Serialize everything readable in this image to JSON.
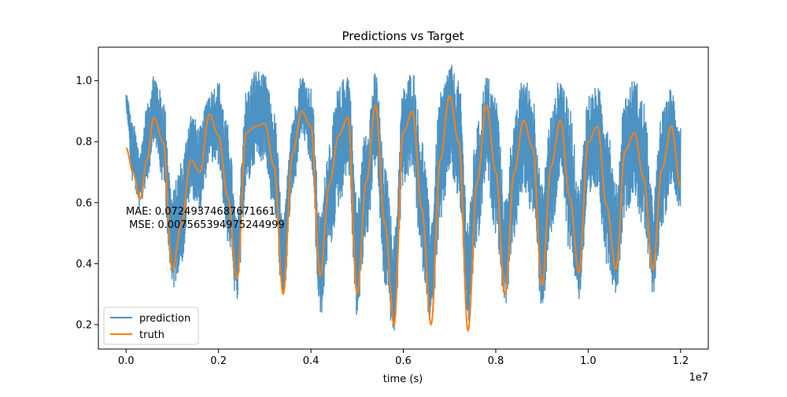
{
  "chart_data": {
    "type": "line",
    "title": "Predictions vs Target",
    "xlabel": "time (s)",
    "ylabel": "",
    "x_offset_label": "1e7",
    "xlim": [
      -0.06,
      1.26
    ],
    "ylim": [
      0.12,
      1.11
    ],
    "x_ticks": [
      0.0,
      0.2,
      0.4,
      0.6,
      0.8,
      1.0,
      1.2
    ],
    "x_tick_labels": [
      "0.0",
      "0.2",
      "0.4",
      "0.6",
      "0.8",
      "1.0",
      "1.2"
    ],
    "y_ticks": [
      0.2,
      0.4,
      0.6,
      0.8,
      1.0
    ],
    "y_tick_labels": [
      "0.2",
      "0.4",
      "0.6",
      "0.8",
      "1.0"
    ],
    "grid": false,
    "legend_position": "lower-left",
    "annotation_lines": [
      "MAE: 0.07249374687671661",
      " MSE: 0.007565394975244999"
    ],
    "series": [
      {
        "name": "prediction",
        "color": "#1f77b4",
        "alpha": 0.8,
        "noisy": true,
        "x": [
          0.0,
          0.015,
          0.03,
          0.045,
          0.06,
          0.08,
          0.1,
          0.12,
          0.14,
          0.16,
          0.18,
          0.2,
          0.22,
          0.24,
          0.26,
          0.28,
          0.3,
          0.32,
          0.34,
          0.36,
          0.38,
          0.4,
          0.42,
          0.44,
          0.46,
          0.48,
          0.5,
          0.52,
          0.54,
          0.56,
          0.58,
          0.6,
          0.62,
          0.64,
          0.66,
          0.68,
          0.7,
          0.72,
          0.74,
          0.76,
          0.78,
          0.8,
          0.82,
          0.84,
          0.86,
          0.88,
          0.9,
          0.92,
          0.94,
          0.96,
          0.98,
          1.0,
          1.02,
          1.04,
          1.06,
          1.08,
          1.1,
          1.12,
          1.14,
          1.16,
          1.18,
          1.2
        ],
        "low": [
          0.9,
          0.66,
          0.58,
          0.66,
          0.8,
          0.66,
          0.31,
          0.4,
          0.62,
          0.57,
          0.73,
          0.72,
          0.47,
          0.27,
          0.64,
          0.73,
          0.74,
          0.56,
          0.27,
          0.62,
          0.82,
          0.72,
          0.22,
          0.44,
          0.58,
          0.7,
          0.22,
          0.48,
          0.72,
          0.32,
          0.16,
          0.66,
          0.7,
          0.38,
          0.2,
          0.5,
          0.7,
          0.6,
          0.2,
          0.46,
          0.68,
          0.5,
          0.26,
          0.48,
          0.64,
          0.56,
          0.25,
          0.48,
          0.68,
          0.44,
          0.28,
          0.58,
          0.64,
          0.4,
          0.3,
          0.56,
          0.62,
          0.5,
          0.3,
          0.5,
          0.66,
          0.58
        ],
        "high": [
          0.96,
          0.86,
          0.78,
          0.92,
          1.03,
          0.95,
          0.64,
          0.74,
          0.9,
          0.85,
          0.97,
          1.0,
          0.86,
          0.55,
          0.97,
          1.04,
          1.02,
          0.9,
          0.55,
          0.9,
          1.02,
          0.98,
          0.56,
          0.82,
          0.98,
          1.04,
          0.62,
          0.86,
          1.03,
          0.72,
          0.5,
          0.98,
          1.04,
          0.82,
          0.56,
          0.96,
          1.06,
          1.0,
          0.56,
          0.86,
          1.02,
          0.96,
          0.62,
          0.88,
          1.02,
          0.96,
          0.66,
          0.9,
          1.02,
          0.92,
          0.66,
          0.96,
          0.98,
          0.9,
          0.66,
          0.96,
          1.01,
          0.94,
          0.62,
          0.9,
          0.98,
          0.86
        ]
      },
      {
        "name": "truth",
        "color": "#ff7f0e",
        "x": [
          0.0,
          0.015,
          0.03,
          0.045,
          0.06,
          0.08,
          0.1,
          0.12,
          0.14,
          0.16,
          0.18,
          0.2,
          0.22,
          0.24,
          0.26,
          0.28,
          0.3,
          0.32,
          0.34,
          0.36,
          0.38,
          0.4,
          0.42,
          0.44,
          0.46,
          0.48,
          0.5,
          0.52,
          0.54,
          0.56,
          0.58,
          0.6,
          0.62,
          0.64,
          0.66,
          0.68,
          0.7,
          0.72,
          0.74,
          0.76,
          0.78,
          0.8,
          0.82,
          0.84,
          0.86,
          0.88,
          0.9,
          0.92,
          0.94,
          0.96,
          0.98,
          1.0,
          1.02,
          1.04,
          1.06,
          1.08,
          1.1,
          1.12,
          1.14,
          1.16,
          1.18,
          1.2
        ],
        "values": [
          0.78,
          0.7,
          0.61,
          0.74,
          0.88,
          0.8,
          0.38,
          0.53,
          0.74,
          0.7,
          0.89,
          0.82,
          0.62,
          0.35,
          0.83,
          0.85,
          0.86,
          0.72,
          0.3,
          0.76,
          0.9,
          0.85,
          0.36,
          0.66,
          0.82,
          0.88,
          0.3,
          0.67,
          0.92,
          0.53,
          0.2,
          0.83,
          0.9,
          0.58,
          0.2,
          0.74,
          0.95,
          0.8,
          0.18,
          0.67,
          0.92,
          0.7,
          0.3,
          0.7,
          0.87,
          0.78,
          0.33,
          0.72,
          0.87,
          0.62,
          0.37,
          0.8,
          0.85,
          0.59,
          0.38,
          0.77,
          0.83,
          0.68,
          0.38,
          0.71,
          0.85,
          0.65
        ]
      }
    ]
  }
}
